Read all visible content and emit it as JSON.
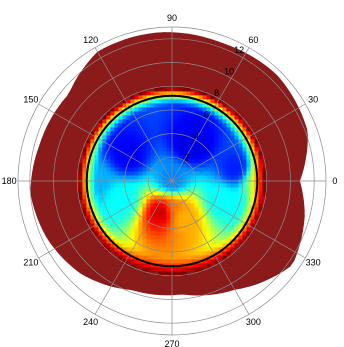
{
  "chart_data": {
    "type": "heatmap",
    "projection": "polar",
    "colormap": "jet",
    "title": "",
    "angular_ticks": [
      90,
      60,
      30,
      0,
      330,
      300,
      270,
      240,
      210,
      180,
      150,
      120
    ],
    "radial_ticks": [
      2,
      4,
      6,
      8,
      10,
      12
    ],
    "radial_range": [
      0,
      13
    ],
    "grid": true,
    "legend": "none",
    "boundary_circle_radius": 7.2,
    "field_description_points": [
      {
        "theta": 0,
        "r": 0,
        "level": 0.25
      },
      {
        "theta": 270,
        "r": 2.4,
        "level": 0.75
      },
      {
        "theta": 255,
        "r": 2.7,
        "level": 0.95
      },
      {
        "theta": 285,
        "r": 3.2,
        "level": 0.7
      },
      {
        "theta": 200,
        "r": 4.5,
        "level": 0.38
      },
      {
        "theta": 340,
        "r": 4.5,
        "level": 0.38
      },
      {
        "theta": 150,
        "r": 4.3,
        "level": 0.12
      },
      {
        "theta": 60,
        "r": 3.5,
        "level": 0.1
      },
      {
        "theta": 10,
        "r": 5.5,
        "level": 0.15
      },
      {
        "theta": 180,
        "r": 6.5,
        "level": 0.3
      },
      {
        "theta": 0,
        "r": 7.0,
        "level": 0.5
      },
      {
        "theta": 0,
        "r": 7.6,
        "level": 1.0
      }
    ],
    "outer_extent": [
      {
        "theta": 0,
        "r": 10.8
      },
      {
        "theta": 20,
        "r": 12.2
      },
      {
        "theta": 45,
        "r": 12.6
      },
      {
        "theta": 70,
        "r": 12.4
      },
      {
        "theta": 95,
        "r": 12.6
      },
      {
        "theta": 120,
        "r": 12.6
      },
      {
        "theta": 140,
        "r": 11.4
      },
      {
        "theta": 165,
        "r": 11.6
      },
      {
        "theta": 185,
        "r": 12.0
      },
      {
        "theta": 205,
        "r": 11.6
      },
      {
        "theta": 225,
        "r": 11.0
      },
      {
        "theta": 250,
        "r": 9.8
      },
      {
        "theta": 275,
        "r": 9.6
      },
      {
        "theta": 300,
        "r": 10.6
      },
      {
        "theta": 325,
        "r": 12.4
      },
      {
        "theta": 345,
        "r": 11.6
      }
    ],
    "colors": {
      "outer": "#8b1a1a",
      "grid": "#8c8c8c",
      "boundary": "#000000"
    }
  }
}
